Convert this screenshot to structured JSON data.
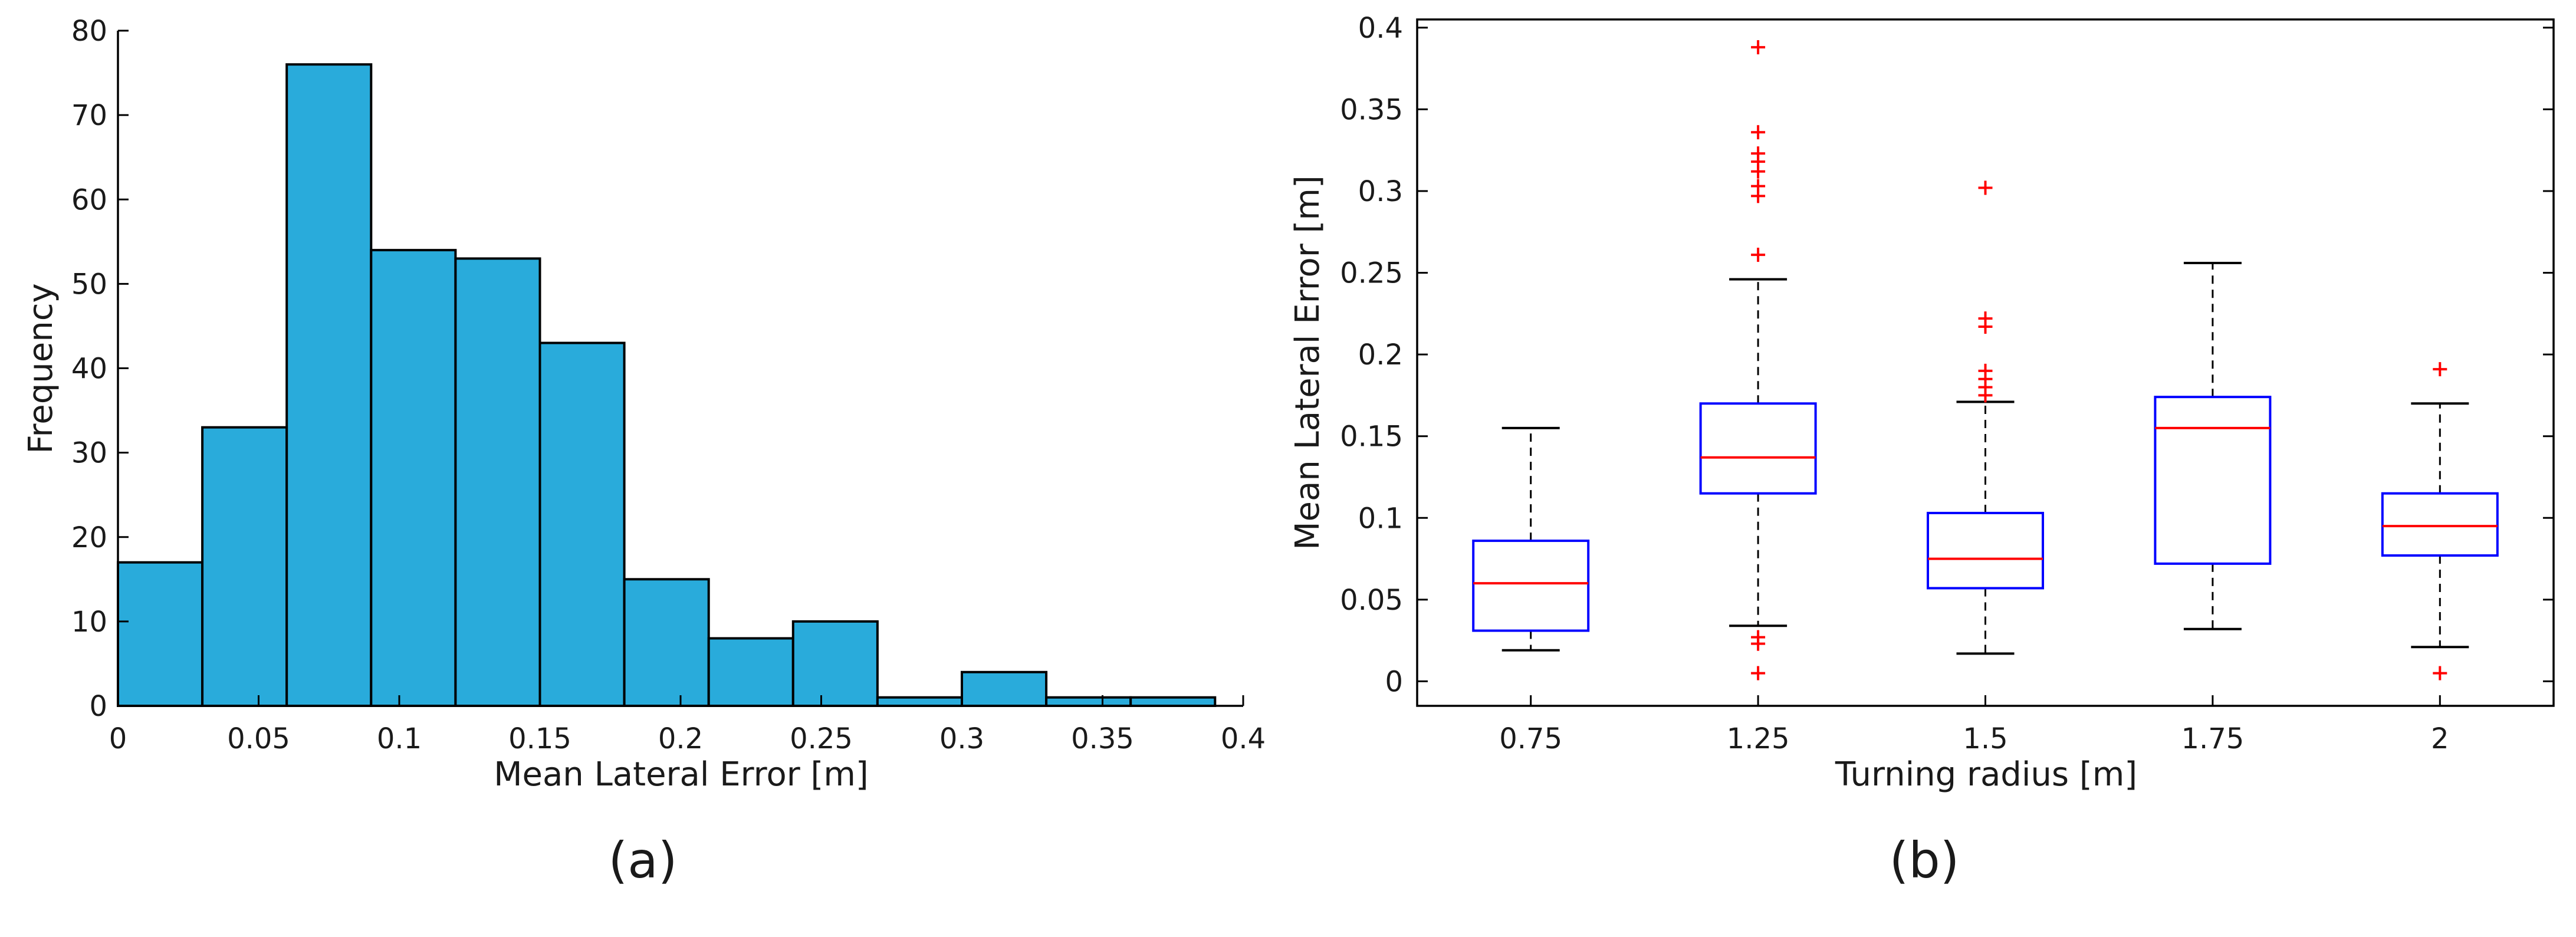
{
  "chart_data": [
    {
      "type": "bar",
      "subtype": "histogram",
      "panel_label": "(a)",
      "title": "",
      "xlabel": "Mean Lateral Error [m]",
      "ylabel": "Frequency",
      "bin_edges": [
        0,
        0.03,
        0.06,
        0.09,
        0.12,
        0.15,
        0.18,
        0.21,
        0.24,
        0.27,
        0.3,
        0.33,
        0.36,
        0.39
      ],
      "values": [
        17,
        33,
        76,
        54,
        53,
        43,
        15,
        8,
        10,
        1,
        4,
        1,
        1
      ],
      "xlim": [
        0,
        0.4
      ],
      "ylim": [
        0,
        80
      ],
      "xticks": [
        0,
        0.05,
        0.1,
        0.15,
        0.2,
        0.25,
        0.3,
        0.35,
        0.4
      ],
      "xtick_labels": [
        "0",
        "0.05",
        "0.1",
        "0.15",
        "0.2",
        "0.25",
        "0.3",
        "0.35",
        "0.4"
      ],
      "yticks": [
        0,
        10,
        20,
        30,
        40,
        50,
        60,
        70,
        80
      ],
      "ytick_labels": [
        "0",
        "10",
        "20",
        "30",
        "40",
        "50",
        "60",
        "70",
        "80"
      ],
      "bar_color": "#29abdb",
      "grid": false
    },
    {
      "type": "box",
      "panel_label": "(b)",
      "title": "",
      "xlabel": "Turning radius [m]",
      "ylabel": "Mean Lateral Error [m]",
      "categories": [
        "0.75",
        "1.25",
        "1.5",
        "1.75",
        "2"
      ],
      "boxes": [
        {
          "whisker_low": 0.019,
          "q1": 0.031,
          "median": 0.06,
          "q3": 0.086,
          "whisker_high": 0.155,
          "outliers": []
        },
        {
          "whisker_low": 0.034,
          "q1": 0.115,
          "median": 0.137,
          "q3": 0.17,
          "whisker_high": 0.246,
          "outliers": [
            0.005,
            0.023,
            0.027,
            0.261,
            0.297,
            0.303,
            0.312,
            0.318,
            0.323,
            0.336,
            0.388
          ]
        },
        {
          "whisker_low": 0.017,
          "q1": 0.057,
          "median": 0.075,
          "q3": 0.103,
          "whisker_high": 0.171,
          "outliers": [
            0.175,
            0.18,
            0.185,
            0.19,
            0.217,
            0.222,
            0.302
          ]
        },
        {
          "whisker_low": 0.032,
          "q1": 0.072,
          "median": 0.155,
          "q3": 0.174,
          "whisker_high": 0.256,
          "outliers": []
        },
        {
          "whisker_low": 0.021,
          "q1": 0.077,
          "median": 0.095,
          "q3": 0.115,
          "whisker_high": 0.17,
          "outliers": [
            0.005,
            0.191
          ]
        }
      ],
      "ylim": [
        -0.015,
        0.405
      ],
      "yticks": [
        0,
        0.05,
        0.1,
        0.15,
        0.2,
        0.25,
        0.3,
        0.35,
        0.4
      ],
      "ytick_labels": [
        "0",
        "0.05",
        "0.1",
        "0.15",
        "0.2",
        "0.25",
        "0.3",
        "0.35",
        "0.4"
      ],
      "box_color": "#0000ff",
      "median_color": "#ff0000",
      "outlier_color": "#ff0000",
      "whisker_color": "#000000",
      "grid": false
    }
  ]
}
